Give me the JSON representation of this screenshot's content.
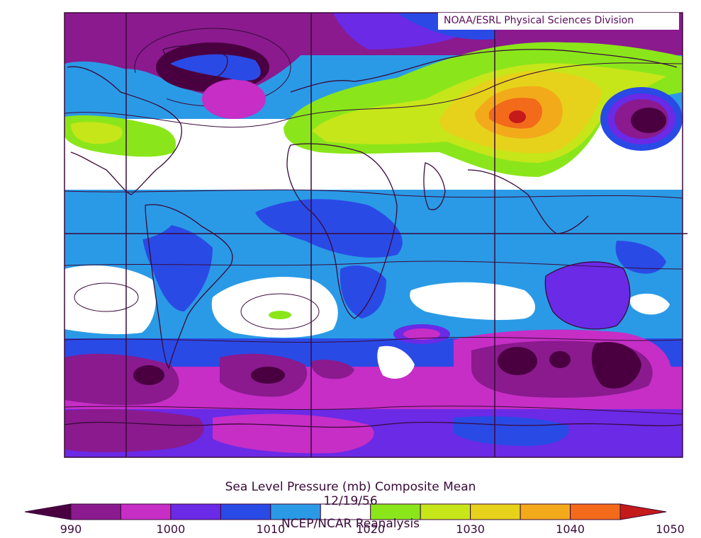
{
  "credit": "NOAA/ESRL Physical Sciences Division",
  "title": "Sea Level Pressure (mb) Composite Mean",
  "date": "12/19/56",
  "source": "NCEP/NCAR Reanalysis",
  "colorbar": {
    "colors": [
      "#4a0040",
      "#8a1a8e",
      "#c62ec6",
      "#6a2ae6",
      "#2a4ae6",
      "#2a9ae6",
      "#ffffff",
      "#8ae61a",
      "#c6e61a",
      "#e6d21a",
      "#f2aa1a",
      "#f26a1a",
      "#c41a1a"
    ],
    "tick_labels": [
      "990",
      "1000",
      "1010",
      "1020",
      "1030",
      "1040",
      "1050"
    ]
  },
  "legend_colors": {
    "deep_low": "#4a0040",
    "low": "#8a1a8e",
    "magenta": "#c62ec6",
    "violet": "#6a2ae6",
    "blue": "#2a4ae6",
    "light_blue": "#2a9ae6",
    "neutral": "#ffffff",
    "green": "#8ae61a",
    "yellow_green": "#c6e61a",
    "yellow": "#e6d21a",
    "orange": "#f2aa1a",
    "red_orange": "#f26a1a",
    "red": "#c41a1a"
  }
}
